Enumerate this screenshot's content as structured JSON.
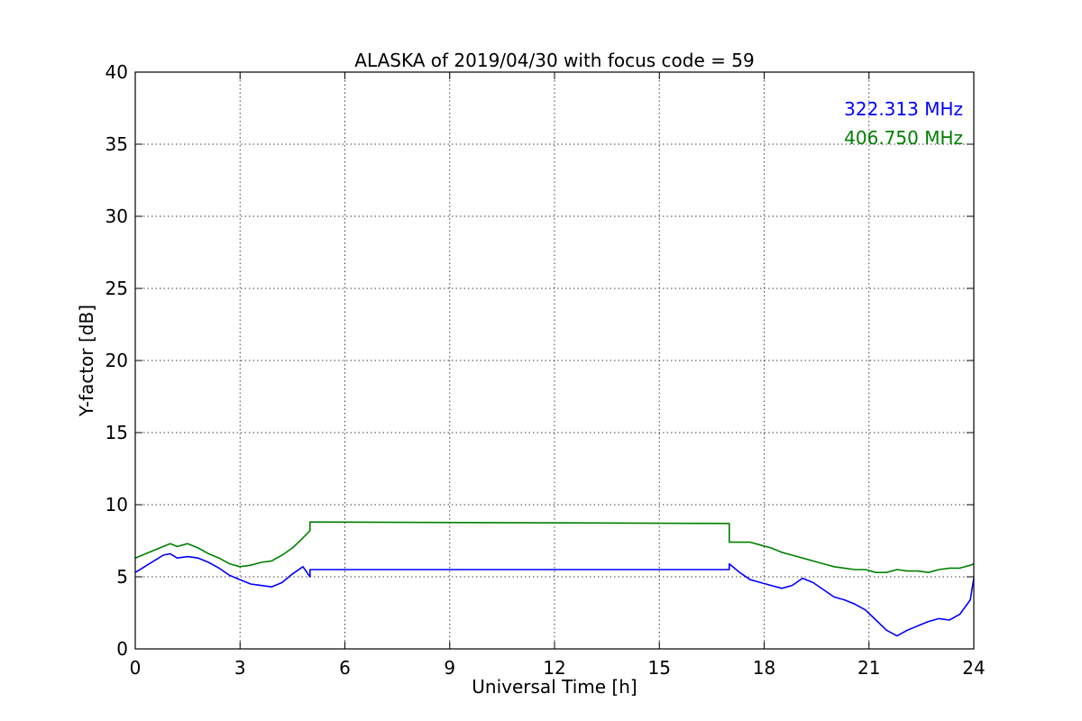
{
  "chart_data": {
    "type": "line",
    "title": "ALASKA of 2019/04/30 with focus code = 59",
    "xlabel": "Universal Time [h]",
    "ylabel": "Y-factor [dB]",
    "xlim": [
      0,
      24
    ],
    "ylim": [
      0,
      40
    ],
    "xticks": [
      0,
      3,
      6,
      9,
      12,
      15,
      18,
      21,
      24
    ],
    "yticks": [
      0,
      5,
      10,
      15,
      20,
      25,
      30,
      35,
      40
    ],
    "grid": true,
    "legend_position": "top-right",
    "series": [
      {
        "name": "322.313 MHz",
        "color": "#0000ff",
        "x": [
          0,
          0.2,
          0.4,
          0.6,
          0.8,
          1.0,
          1.2,
          1.5,
          1.8,
          2.1,
          2.4,
          2.7,
          3.0,
          3.3,
          3.6,
          3.9,
          4.2,
          4.5,
          4.8,
          5.0,
          5.0,
          17.0,
          17.0,
          17.3,
          17.6,
          17.9,
          18.2,
          18.5,
          18.8,
          19.1,
          19.4,
          19.7,
          20.0,
          20.3,
          20.6,
          20.9,
          21.2,
          21.5,
          21.8,
          22.1,
          22.4,
          22.7,
          23.0,
          23.3,
          23.6,
          23.9,
          24.0
        ],
        "y": [
          5.3,
          5.6,
          5.9,
          6.2,
          6.5,
          6.6,
          6.3,
          6.4,
          6.3,
          6.0,
          5.6,
          5.1,
          4.8,
          4.5,
          4.4,
          4.3,
          4.6,
          5.2,
          5.7,
          5.0,
          5.5,
          5.5,
          5.9,
          5.3,
          4.8,
          4.6,
          4.4,
          4.2,
          4.4,
          4.9,
          4.6,
          4.1,
          3.6,
          3.4,
          3.1,
          2.7,
          2.0,
          1.3,
          0.9,
          1.3,
          1.6,
          1.9,
          2.1,
          2.0,
          2.4,
          3.4,
          4.9
        ]
      },
      {
        "name": "406.750 MHz",
        "color": "#008000",
        "x": [
          0,
          0.2,
          0.4,
          0.6,
          0.8,
          1.0,
          1.2,
          1.5,
          1.8,
          2.1,
          2.4,
          2.7,
          3.0,
          3.3,
          3.6,
          3.9,
          4.2,
          4.5,
          4.8,
          5.0,
          5.0,
          17.0,
          17.0,
          17.3,
          17.6,
          17.9,
          18.2,
          18.5,
          18.8,
          19.1,
          19.4,
          19.7,
          20.0,
          20.3,
          20.6,
          20.9,
          21.2,
          21.5,
          21.8,
          22.1,
          22.4,
          22.7,
          23.0,
          23.3,
          23.6,
          23.9,
          24.0
        ],
        "y": [
          6.3,
          6.5,
          6.7,
          6.9,
          7.1,
          7.3,
          7.1,
          7.3,
          7.0,
          6.6,
          6.3,
          5.9,
          5.7,
          5.8,
          6.0,
          6.1,
          6.5,
          7.0,
          7.7,
          8.2,
          8.8,
          8.7,
          7.4,
          7.4,
          7.4,
          7.2,
          7.0,
          6.7,
          6.5,
          6.3,
          6.1,
          5.9,
          5.7,
          5.6,
          5.5,
          5.5,
          5.3,
          5.3,
          5.5,
          5.4,
          5.4,
          5.3,
          5.5,
          5.6,
          5.6,
          5.8,
          5.9
        ]
      }
    ]
  }
}
